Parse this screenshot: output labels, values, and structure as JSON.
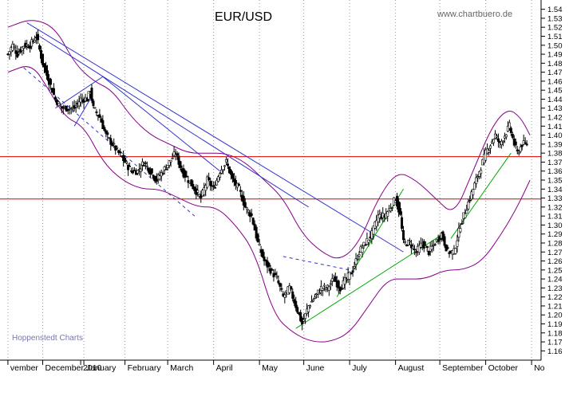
{
  "chart_data": {
    "type": "line",
    "title": "EUR/USD",
    "watermark": "www.chartbuero.de",
    "source_label": "Hoppenstedt Charts",
    "xlabel": "",
    "ylabel": "",
    "ylim": [
      1.155,
      1.545
    ],
    "y_ticks": [
      1.16,
      1.17,
      1.18,
      1.19,
      1.2,
      1.21,
      1.22,
      1.23,
      1.24,
      1.25,
      1.26,
      1.27,
      1.28,
      1.29,
      1.3,
      1.31,
      1.32,
      1.33,
      1.34,
      1.35,
      1.36,
      1.37,
      1.38,
      1.39,
      1.4,
      1.41,
      1.42,
      1.43,
      1.44,
      1.45,
      1.46,
      1.47,
      1.48,
      1.49,
      1.5,
      1.51,
      1.52,
      1.53,
      1.54
    ],
    "x_labels": [
      {
        "label": "vember",
        "t": 0
      },
      {
        "label": "December",
        "t": 22
      },
      {
        "label": "2010",
        "t": 46
      },
      {
        "label": "January",
        "t": 48
      },
      {
        "label": "February",
        "t": 74
      },
      {
        "label": "March",
        "t": 101
      },
      {
        "label": "April",
        "t": 130
      },
      {
        "label": "May",
        "t": 159
      },
      {
        "label": "June",
        "t": 187
      },
      {
        "label": "July",
        "t": 216
      },
      {
        "label": "August",
        "t": 245
      },
      {
        "label": "September",
        "t": 273
      },
      {
        "label": "October",
        "t": 302
      },
      {
        "label": "No",
        "t": 331
      }
    ],
    "t_range": [
      -5,
      336
    ],
    "grid": "vertical dotted",
    "price_path": [
      [
        0,
        1.49
      ],
      [
        3,
        1.5
      ],
      [
        6,
        1.49
      ],
      [
        10,
        1.5
      ],
      [
        14,
        1.5
      ],
      [
        18,
        1.51
      ],
      [
        22,
        1.48
      ],
      [
        26,
        1.46
      ],
      [
        30,
        1.44
      ],
      [
        34,
        1.43
      ],
      [
        38,
        1.43
      ],
      [
        42,
        1.43
      ],
      [
        46,
        1.44
      ],
      [
        50,
        1.44
      ],
      [
        52,
        1.45
      ],
      [
        54,
        1.43
      ],
      [
        58,
        1.42
      ],
      [
        62,
        1.4
      ],
      [
        66,
        1.39
      ],
      [
        70,
        1.38
      ],
      [
        74,
        1.37
      ],
      [
        78,
        1.36
      ],
      [
        82,
        1.36
      ],
      [
        86,
        1.37
      ],
      [
        90,
        1.36
      ],
      [
        94,
        1.35
      ],
      [
        98,
        1.36
      ],
      [
        102,
        1.37
      ],
      [
        106,
        1.38
      ],
      [
        110,
        1.36
      ],
      [
        114,
        1.35
      ],
      [
        118,
        1.34
      ],
      [
        122,
        1.33
      ],
      [
        126,
        1.35
      ],
      [
        130,
        1.34
      ],
      [
        134,
        1.36
      ],
      [
        138,
        1.37
      ],
      [
        142,
        1.35
      ],
      [
        146,
        1.34
      ],
      [
        150,
        1.32
      ],
      [
        154,
        1.31
      ],
      [
        158,
        1.28
      ],
      [
        162,
        1.26
      ],
      [
        166,
        1.25
      ],
      [
        170,
        1.24
      ],
      [
        174,
        1.22
      ],
      [
        178,
        1.23
      ],
      [
        182,
        1.21
      ],
      [
        186,
        1.19
      ],
      [
        190,
        1.21
      ],
      [
        194,
        1.22
      ],
      [
        198,
        1.23
      ],
      [
        202,
        1.23
      ],
      [
        206,
        1.24
      ],
      [
        210,
        1.23
      ],
      [
        214,
        1.24
      ],
      [
        218,
        1.25
      ],
      [
        222,
        1.27
      ],
      [
        226,
        1.28
      ],
      [
        230,
        1.29
      ],
      [
        234,
        1.31
      ],
      [
        238,
        1.31
      ],
      [
        242,
        1.32
      ],
      [
        245,
        1.33
      ],
      [
        248,
        1.31
      ],
      [
        250,
        1.28
      ],
      [
        254,
        1.28
      ],
      [
        258,
        1.27
      ],
      [
        262,
        1.28
      ],
      [
        266,
        1.27
      ],
      [
        270,
        1.28
      ],
      [
        274,
        1.29
      ],
      [
        278,
        1.27
      ],
      [
        282,
        1.27
      ],
      [
        286,
        1.3
      ],
      [
        290,
        1.32
      ],
      [
        294,
        1.34
      ],
      [
        298,
        1.36
      ],
      [
        302,
        1.38
      ],
      [
        305,
        1.39
      ],
      [
        308,
        1.4
      ],
      [
        311,
        1.39
      ],
      [
        314,
        1.4
      ],
      [
        317,
        1.41
      ],
      [
        320,
        1.39
      ],
      [
        322,
        1.38
      ],
      [
        325,
        1.39
      ],
      [
        328,
        1.39
      ]
    ],
    "bands_upper": [
      [
        0,
        1.52
      ],
      [
        15,
        1.53
      ],
      [
        30,
        1.52
      ],
      [
        42,
        1.48
      ],
      [
        54,
        1.46
      ],
      [
        66,
        1.45
      ],
      [
        78,
        1.42
      ],
      [
        90,
        1.4
      ],
      [
        102,
        1.39
      ],
      [
        114,
        1.38
      ],
      [
        126,
        1.38
      ],
      [
        138,
        1.38
      ],
      [
        150,
        1.37
      ],
      [
        162,
        1.35
      ],
      [
        174,
        1.33
      ],
      [
        186,
        1.29
      ],
      [
        198,
        1.27
      ],
      [
        210,
        1.26
      ],
      [
        222,
        1.28
      ],
      [
        234,
        1.33
      ],
      [
        246,
        1.36
      ],
      [
        258,
        1.35
      ],
      [
        270,
        1.33
      ],
      [
        282,
        1.31
      ],
      [
        294,
        1.36
      ],
      [
        306,
        1.41
      ],
      [
        316,
        1.43
      ],
      [
        324,
        1.42
      ],
      [
        330,
        1.4
      ]
    ],
    "bands_lower": [
      [
        0,
        1.47
      ],
      [
        15,
        1.48
      ],
      [
        26,
        1.45
      ],
      [
        36,
        1.42
      ],
      [
        48,
        1.41
      ],
      [
        60,
        1.37
      ],
      [
        72,
        1.35
      ],
      [
        84,
        1.34
      ],
      [
        96,
        1.34
      ],
      [
        108,
        1.33
      ],
      [
        120,
        1.32
      ],
      [
        132,
        1.32
      ],
      [
        144,
        1.3
      ],
      [
        156,
        1.27
      ],
      [
        168,
        1.2
      ],
      [
        180,
        1.18
      ],
      [
        192,
        1.17
      ],
      [
        204,
        1.17
      ],
      [
        216,
        1.18
      ],
      [
        228,
        1.21
      ],
      [
        240,
        1.24
      ],
      [
        252,
        1.24
      ],
      [
        264,
        1.24
      ],
      [
        276,
        1.25
      ],
      [
        288,
        1.25
      ],
      [
        300,
        1.26
      ],
      [
        312,
        1.29
      ],
      [
        322,
        1.32
      ],
      [
        330,
        1.35
      ]
    ],
    "lines": [
      {
        "color": "#3333cc",
        "dash": false,
        "points": [
          [
            12,
            1.525
          ],
          [
            250,
            1.27
          ]
        ]
      },
      {
        "color": "#3333cc",
        "dash": false,
        "points": [
          [
            20,
            1.51
          ],
          [
            190,
            1.32
          ]
        ]
      },
      {
        "color": "#3333cc",
        "dash": false,
        "points": [
          [
            30,
            1.43
          ],
          [
            60,
            1.465
          ]
        ]
      },
      {
        "color": "#3333cc",
        "dash": false,
        "points": [
          [
            60,
            1.465
          ],
          [
            134,
            1.36
          ]
        ]
      },
      {
        "color": "#3333cc",
        "dash": false,
        "points": [
          [
            42,
            1.41
          ],
          [
            52,
            1.44
          ]
        ]
      },
      {
        "color": "#3333cc",
        "dash": true,
        "points": [
          [
            10,
            1.475
          ],
          [
            118,
            1.31
          ]
        ]
      },
      {
        "color": "#3333cc",
        "dash": true,
        "points": [
          [
            174,
            1.265
          ],
          [
            216,
            1.25
          ]
        ]
      },
      {
        "color": "#00aa00",
        "dash": false,
        "points": [
          [
            182,
            1.185
          ],
          [
            275,
            1.29
          ]
        ]
      },
      {
        "color": "#00aa00",
        "dash": false,
        "points": [
          [
            208,
            1.22
          ],
          [
            250,
            1.34
          ]
        ]
      },
      {
        "color": "#00aa00",
        "dash": false,
        "points": [
          [
            280,
            1.285
          ],
          [
            318,
            1.38
          ]
        ]
      }
    ],
    "hlines": [
      {
        "y": 1.376,
        "color": "#dd0000"
      },
      {
        "y": 1.329,
        "color": "#dd0000"
      }
    ],
    "colors": {
      "price": "#000000",
      "bands": "#880088",
      "support": "#dd0000",
      "trend_down": "#3333cc",
      "trend_up": "#00aa00"
    }
  }
}
